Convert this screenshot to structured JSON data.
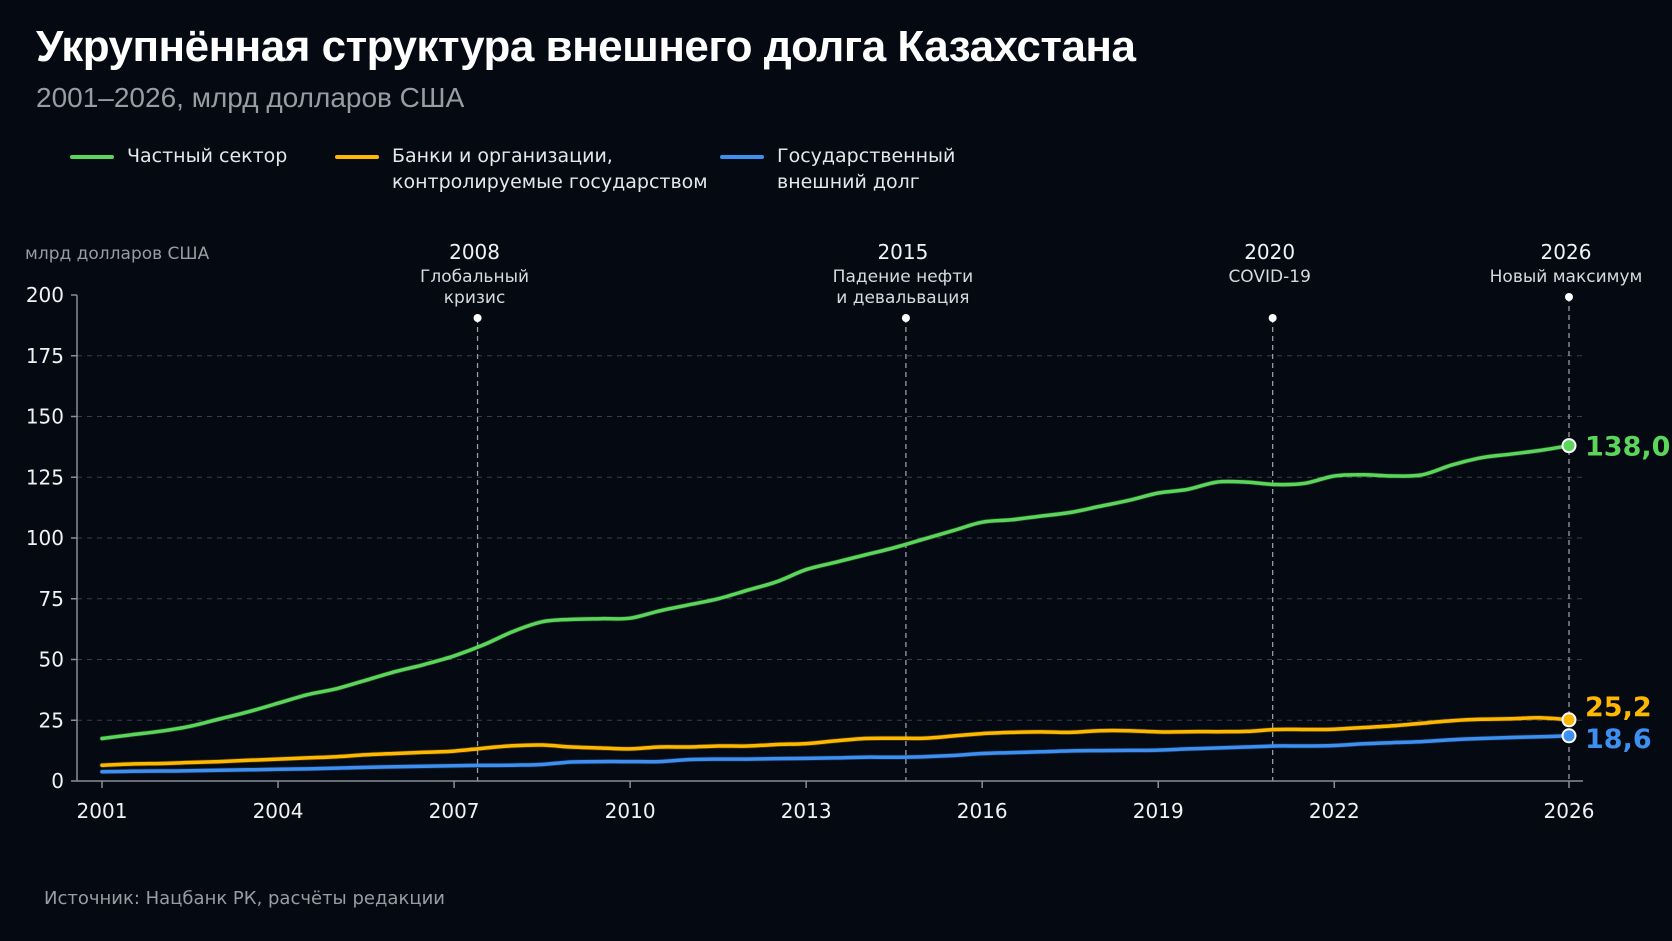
{
  "header": {
    "title": "Укрупнённая структура внешнего долга Казахстана",
    "subtitle": "2001–2026, млрд долларов США"
  },
  "legend": [
    {
      "key": "private",
      "lines": [
        "Частный сектор"
      ],
      "color": "#5bd65b"
    },
    {
      "key": "banks",
      "lines": [
        "Банки и организации,",
        "контролируемые государством"
      ],
      "color": "#ffb800"
    },
    {
      "key": "gov",
      "lines": [
        "Государственный",
        "внешний долг"
      ],
      "color": "#3d8ff0"
    }
  ],
  "source": "Источник: Нацбанк РК, расчёты редакции",
  "chart_data": {
    "type": "line",
    "title": "Укрупнённая структура внешнего долга Казахстана",
    "subtitle": "2001–2026, млрд долларов США",
    "xlabel": "",
    "ylabel": "млрд долларов США",
    "xlim": [
      2001,
      2026
    ],
    "ylim": [
      0,
      200
    ],
    "x_ticks": [
      "2001",
      "2004",
      "2007",
      "2010",
      "2013",
      "2016",
      "2019",
      "2022",
      "2026"
    ],
    "x_tick_values": [
      2001,
      2004,
      2007,
      2010,
      2013,
      2016,
      2019,
      2022,
      2026
    ],
    "y_ticks": [
      "0",
      "25",
      "50",
      "75",
      "100",
      "125",
      "150",
      "175",
      "200"
    ],
    "y_tick_values": [
      0,
      25,
      50,
      75,
      100,
      125,
      150,
      175,
      200
    ],
    "grid": true,
    "legend_position": "top-left",
    "x": [
      2001,
      2001.5,
      2002,
      2002.5,
      2003,
      2003.5,
      2004,
      2004.5,
      2005,
      2005.5,
      2006,
      2006.5,
      2007,
      2007.5,
      2008,
      2008.5,
      2009,
      2009.5,
      2010,
      2010.5,
      2011,
      2011.5,
      2012,
      2012.5,
      2013,
      2013.5,
      2014,
      2014.5,
      2015,
      2015.5,
      2016,
      2016.5,
      2017,
      2017.5,
      2018,
      2018.5,
      2019,
      2019.5,
      2020,
      2020.5,
      2021,
      2021.5,
      2022,
      2022.5,
      2023,
      2023.5,
      2024,
      2024.5,
      2025,
      2025.5,
      2026
    ],
    "series": [
      {
        "name": "Частный сектор",
        "color": "#5bd65b",
        "values": [
          17.5,
          19,
          20.5,
          22.5,
          25.5,
          28.5,
          32,
          35.5,
          38,
          41.5,
          45,
          48,
          51.5,
          56,
          61.5,
          65.5,
          66.5,
          66.8,
          67,
          70,
          72.5,
          75,
          78.5,
          82,
          87,
          90,
          93,
          96,
          99.5,
          103,
          106.5,
          107.5,
          109,
          110.5,
          113,
          115.5,
          118.5,
          120,
          123,
          123,
          122,
          122.5,
          125.5,
          126,
          125.5,
          126,
          130,
          133,
          134.5,
          136,
          138.0
        ]
      },
      {
        "name": "Банки и организации, контролируемые государством",
        "color": "#ffb800",
        "values": [
          6.5,
          7,
          7.2,
          7.6,
          8,
          8.5,
          9,
          9.5,
          10,
          10.8,
          11.3,
          11.8,
          12.3,
          13.5,
          14.5,
          14.8,
          14,
          13.6,
          13.2,
          14,
          14,
          14.4,
          14.4,
          15,
          15.4,
          16.5,
          17.5,
          17.6,
          17.6,
          18.5,
          19.5,
          20,
          20.2,
          20,
          20.7,
          20.7,
          20.2,
          20.3,
          20.3,
          20.4,
          21.2,
          21.2,
          21.3,
          22,
          22.7,
          23.8,
          24.8,
          25.4,
          25.6,
          26,
          25.2
        ]
      },
      {
        "name": "Государственный внешний долг",
        "color": "#3d8ff0",
        "values": [
          3.8,
          4,
          4.1,
          4.2,
          4.4,
          4.6,
          4.8,
          5,
          5.3,
          5.6,
          5.9,
          6.1,
          6.3,
          6.4,
          6.5,
          6.8,
          7.8,
          8,
          8,
          8,
          8.8,
          9,
          9,
          9.2,
          9.3,
          9.5,
          9.8,
          9.8,
          10,
          10.5,
          11.3,
          11.7,
          12,
          12.4,
          12.5,
          12.6,
          12.7,
          13.2,
          13.6,
          14,
          14.4,
          14.4,
          14.6,
          15.3,
          15.8,
          16.2,
          17,
          17.5,
          17.9,
          18.2,
          18.6
        ]
      }
    ],
    "end_labels": [
      {
        "series": "Частный сектор",
        "value": 138.0,
        "label": "138,0",
        "color": "#5bd65b"
      },
      {
        "series": "Банки и организации, контролируемые государством",
        "value": 25.2,
        "label": "25,2",
        "color": "#ffb800"
      },
      {
        "series": "Государственный внешний долг",
        "value": 18.6,
        "label": "18,6",
        "color": "#3d8ff0"
      }
    ],
    "annotations": [
      {
        "year_label": "2008",
        "x": 2007.4,
        "lines": [
          "Глобальный",
          "кризис"
        ]
      },
      {
        "year_label": "2015",
        "x": 2014.7,
        "lines": [
          "Падение нефти",
          "и девальвация"
        ]
      },
      {
        "year_label": "2020",
        "x": 2020.95,
        "lines": [
          "COVID-19"
        ]
      },
      {
        "year_label": "2026",
        "x": 2026,
        "lines": [
          "Новый максимум"
        ]
      }
    ]
  }
}
